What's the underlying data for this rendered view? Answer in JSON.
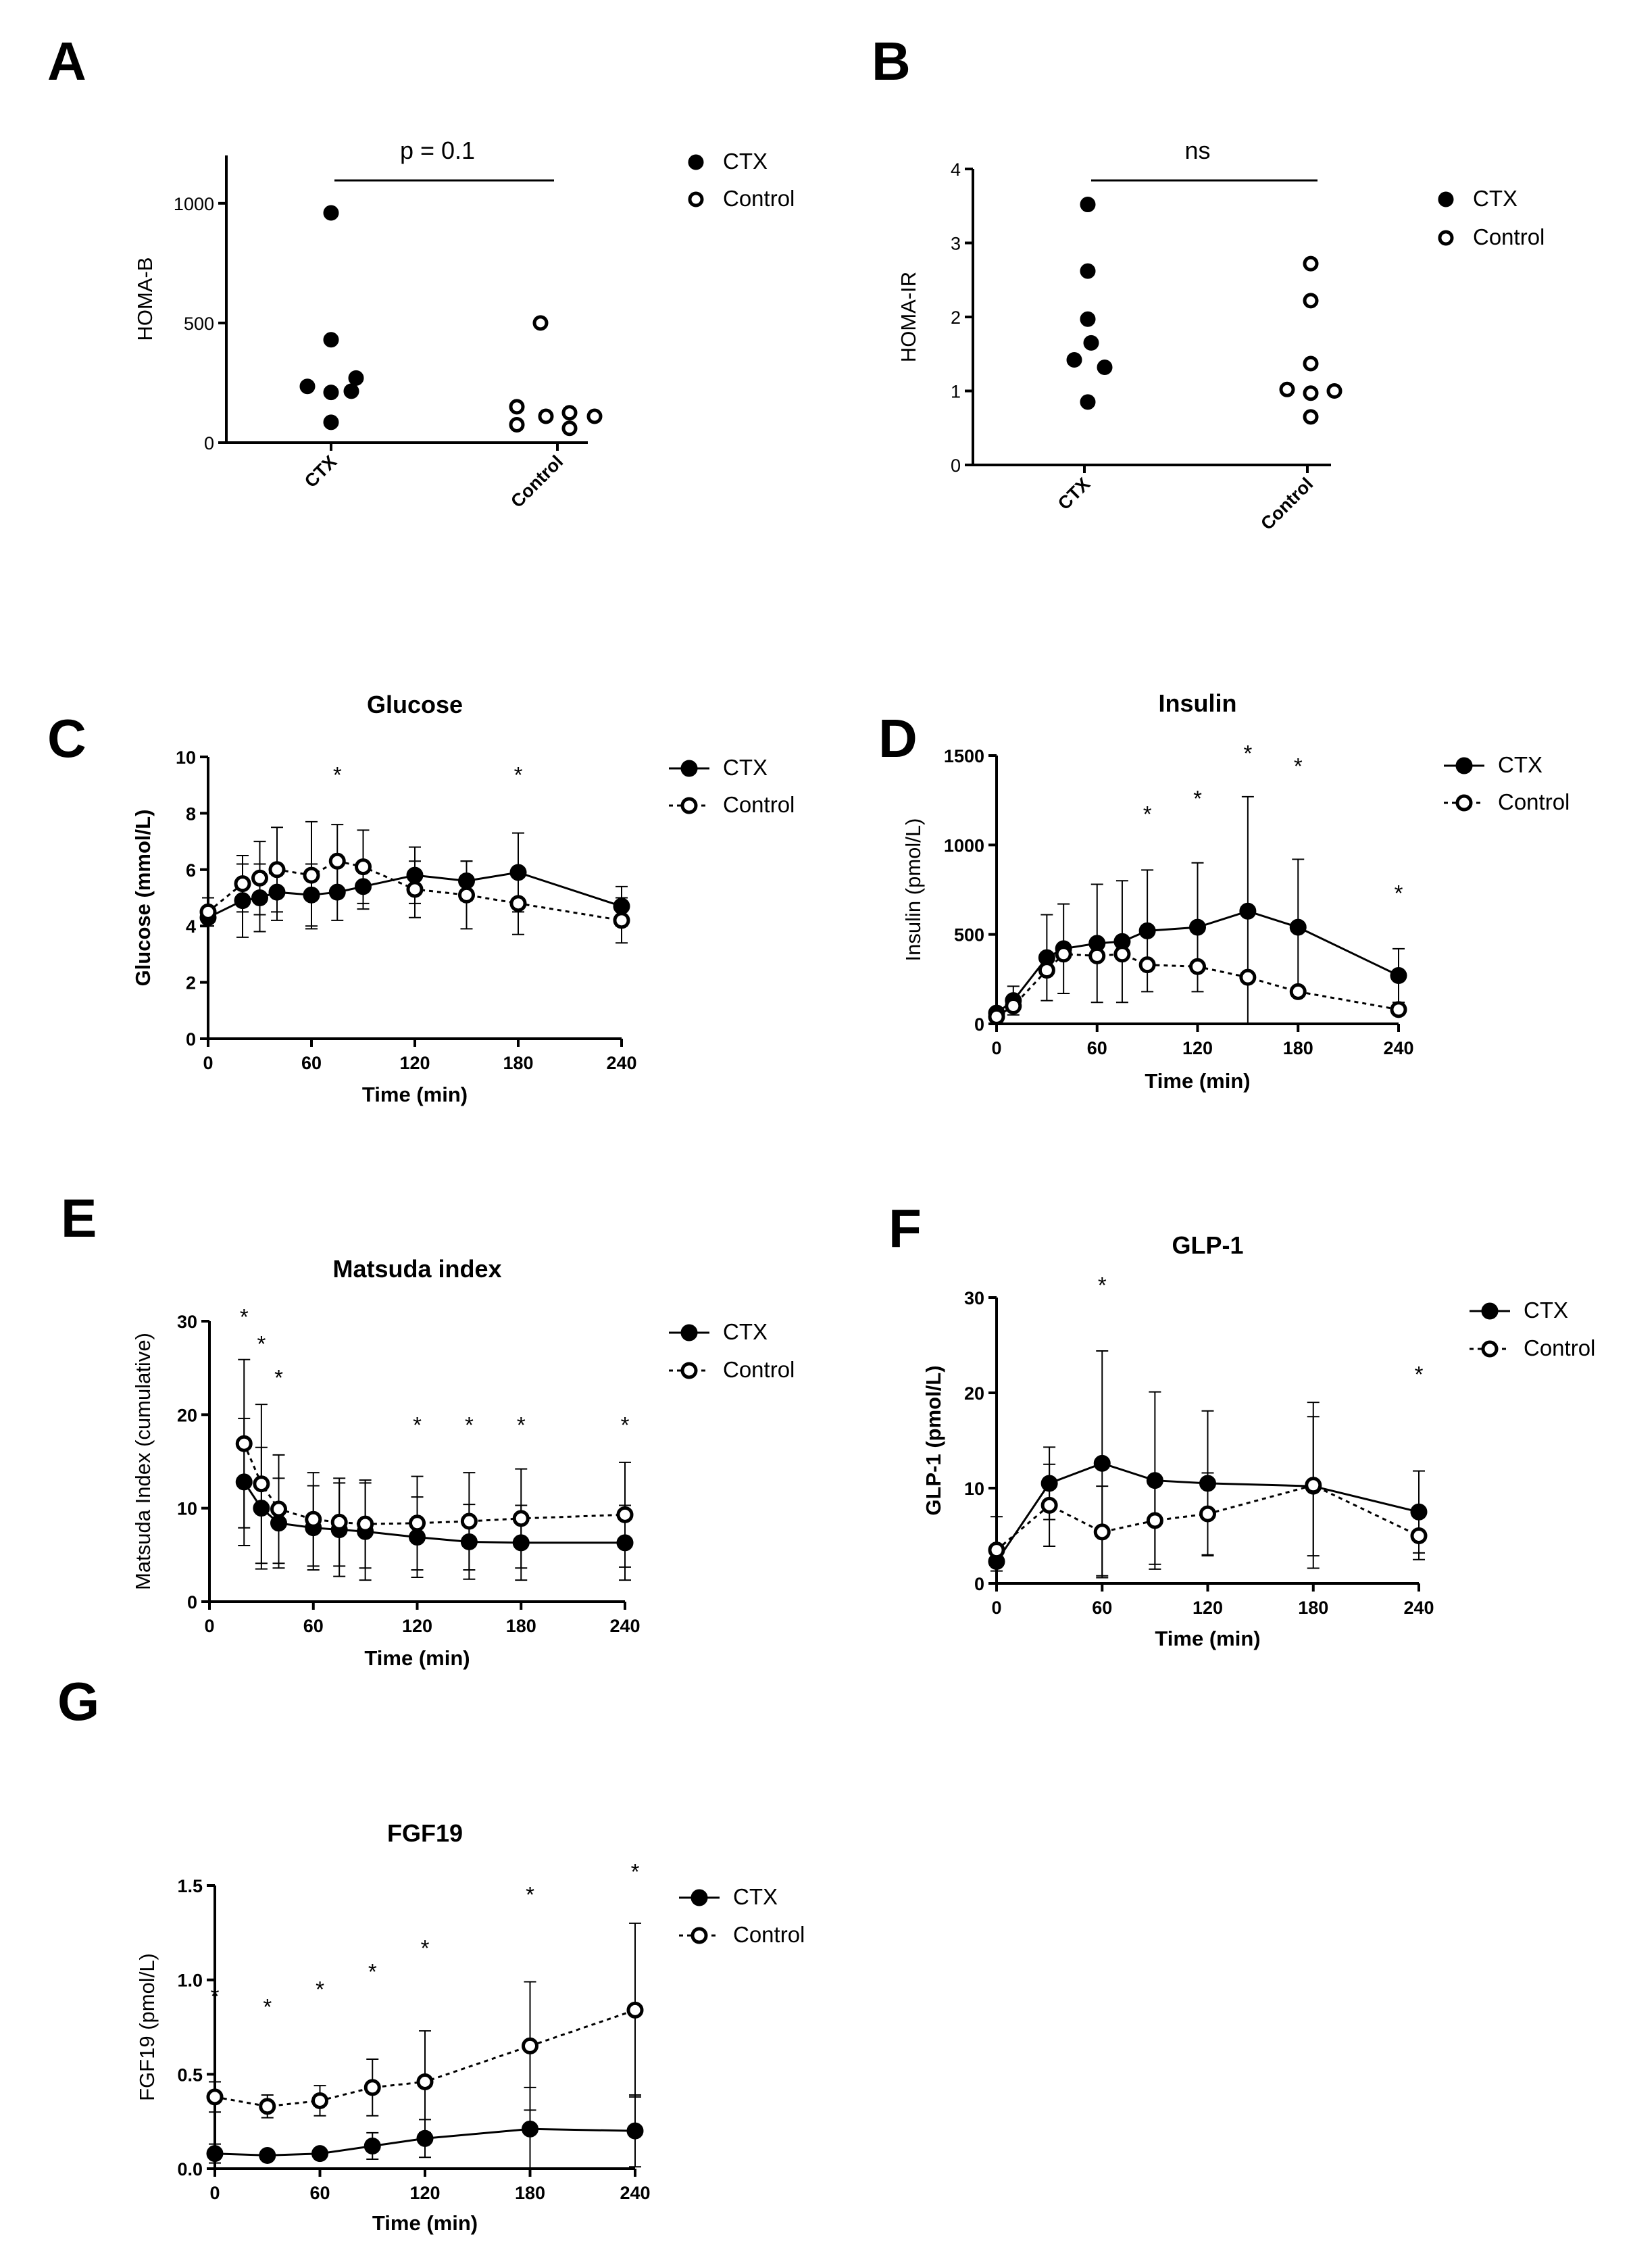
{
  "figure": {
    "panel_letters": [
      "A",
      "B",
      "C",
      "D",
      "E",
      "F",
      "G"
    ]
  },
  "chart_data": [
    {
      "id": "A",
      "type": "scatter",
      "title": "",
      "xlabel": "",
      "ylabel": "HOMA-B",
      "categories": [
        "CTX",
        "Control"
      ],
      "ylim": [
        0,
        1200
      ],
      "yticks": [
        0,
        500,
        1000
      ],
      "series": [
        {
          "name": "CTX",
          "style": "filled",
          "values": [
            960,
            430,
            270,
            235,
            210,
            215,
            85
          ]
        },
        {
          "name": "Control",
          "style": "open",
          "values": [
            500,
            150,
            125,
            110,
            110,
            75,
            60
          ]
        }
      ],
      "comparison": "p = 0.1"
    },
    {
      "id": "B",
      "type": "scatter",
      "title": "",
      "xlabel": "",
      "ylabel": "HOMA-IR",
      "categories": [
        "CTX",
        "Control"
      ],
      "ylim": [
        0,
        4
      ],
      "yticks": [
        0,
        1,
        2,
        3,
        4
      ],
      "series": [
        {
          "name": "CTX",
          "style": "filled",
          "values": [
            3.52,
            2.62,
            1.97,
            1.65,
            1.42,
            1.32,
            0.85
          ]
        },
        {
          "name": "Control",
          "style": "open",
          "values": [
            2.72,
            2.22,
            1.37,
            1.02,
            1.0,
            0.97,
            0.65
          ]
        }
      ],
      "comparison": "ns"
    },
    {
      "id": "C",
      "type": "line",
      "title": "Glucose",
      "xlabel": "Time (min)",
      "ylabel": "Glucose (mmol/L)",
      "xlim": [
        0,
        240
      ],
      "xticks": [
        0,
        60,
        120,
        180,
        240
      ],
      "ylim": [
        0,
        10
      ],
      "yticks": [
        0,
        2,
        4,
        6,
        8,
        10
      ],
      "series": [
        {
          "name": "CTX",
          "style": "solid",
          "x": [
            0,
            20,
            30,
            40,
            60,
            75,
            90,
            120,
            150,
            180,
            240
          ],
          "y": [
            4.3,
            4.9,
            5.0,
            5.2,
            5.1,
            5.2,
            5.4,
            5.8,
            5.6,
            5.9,
            4.7
          ],
          "err": [
            0.3,
            1.3,
            1.2,
            1.0,
            1.1,
            1.0,
            0.8,
            1.0,
            0.7,
            1.4,
            0.7
          ]
        },
        {
          "name": "Control",
          "style": "dashed",
          "x": [
            0,
            20,
            30,
            40,
            60,
            75,
            90,
            120,
            150,
            180,
            240
          ],
          "y": [
            4.5,
            5.5,
            5.7,
            6.0,
            5.8,
            6.3,
            6.1,
            5.3,
            5.1,
            4.8,
            4.2
          ],
          "err": [
            0.5,
            1.0,
            1.3,
            1.5,
            1.9,
            1.3,
            1.3,
            1.0,
            1.2,
            1.1,
            0.8
          ]
        }
      ],
      "significance": [
        {
          "x": 75,
          "label": "*"
        },
        {
          "x": 180,
          "label": "*"
        }
      ]
    },
    {
      "id": "D",
      "type": "line",
      "title": "Insulin",
      "xlabel": "Time (min)",
      "ylabel": "Insulin (pmol/L)",
      "xlim": [
        0,
        240
      ],
      "xticks": [
        0,
        60,
        120,
        180,
        240
      ],
      "ylim": [
        0,
        1500
      ],
      "yticks": [
        0,
        500,
        1000,
        1500
      ],
      "series": [
        {
          "name": "CTX",
          "style": "solid",
          "x": [
            0,
            10,
            30,
            40,
            60,
            75,
            90,
            120,
            150,
            180,
            240
          ],
          "y": [
            60,
            130,
            370,
            420,
            450,
            460,
            520,
            540,
            630,
            540,
            270
          ],
          "err": [
            30,
            80,
            240,
            250,
            330,
            340,
            340,
            360,
            640,
            380,
            150
          ]
        },
        {
          "name": "Control",
          "style": "dashed",
          "x": [
            0,
            10,
            30,
            40,
            60,
            75,
            90,
            120,
            150,
            180,
            240
          ],
          "y": [
            40,
            100,
            300,
            390,
            380,
            390,
            330,
            320,
            260,
            180,
            80
          ]
        }
      ],
      "significance": [
        {
          "x": 90,
          "label": "*"
        },
        {
          "x": 120,
          "label": "*"
        },
        {
          "x": 150,
          "label": "*"
        },
        {
          "x": 180,
          "label": "*"
        },
        {
          "x": 240,
          "label": "*"
        }
      ]
    },
    {
      "id": "E",
      "type": "line",
      "title": "Matsuda index",
      "xlabel": "Time (min)",
      "ylabel": "Matsuda Index (cumulative)",
      "xlim": [
        0,
        240
      ],
      "xticks": [
        0,
        60,
        120,
        180,
        240
      ],
      "ylim": [
        0,
        30
      ],
      "yticks": [
        0,
        10,
        20,
        30
      ],
      "series": [
        {
          "name": "CTX",
          "style": "solid",
          "x": [
            20,
            30,
            40,
            60,
            75,
            90,
            120,
            150,
            180,
            240
          ],
          "y": [
            12.8,
            10.0,
            8.4,
            7.9,
            7.7,
            7.5,
            6.9,
            6.4,
            6.3,
            6.3
          ],
          "err": [
            6.8,
            6.5,
            4.8,
            4.5,
            5.0,
            5.2,
            4.3,
            4.0,
            4.0,
            4.0
          ]
        },
        {
          "name": "Control",
          "style": "dashed",
          "x": [
            20,
            30,
            40,
            60,
            75,
            90,
            120,
            150,
            180,
            240
          ],
          "y": [
            16.9,
            12.6,
            9.9,
            8.8,
            8.5,
            8.3,
            8.4,
            8.6,
            8.9,
            9.3
          ],
          "err": [
            9.0,
            8.5,
            5.8,
            5.0,
            4.7,
            4.7,
            5.0,
            5.2,
            5.3,
            5.6
          ]
        }
      ],
      "significance": [
        {
          "x": 20,
          "label": "*"
        },
        {
          "x": 30,
          "label": "*"
        },
        {
          "x": 40,
          "label": "*"
        },
        {
          "x": 120,
          "label": "*"
        },
        {
          "x": 150,
          "label": "*"
        },
        {
          "x": 180,
          "label": "*"
        },
        {
          "x": 240,
          "label": "*"
        }
      ]
    },
    {
      "id": "F",
      "type": "line",
      "title": "GLP-1",
      "xlabel": "Time (min)",
      "ylabel": "GLP-1 (pmol/L)",
      "xlim": [
        0,
        240
      ],
      "xticks": [
        0,
        60,
        120,
        180,
        240
      ],
      "ylim": [
        0,
        30
      ],
      "yticks": [
        0,
        10,
        20,
        30
      ],
      "series": [
        {
          "name": "CTX",
          "style": "solid",
          "x": [
            0,
            30,
            60,
            90,
            120,
            180,
            240
          ],
          "y": [
            2.3,
            10.5,
            12.6,
            10.8,
            10.5,
            10.2,
            7.5
          ],
          "err": [
            1.0,
            3.8,
            11.8,
            9.3,
            7.6,
            7.3,
            4.3
          ]
        },
        {
          "name": "Control",
          "style": "dashed",
          "x": [
            0,
            30,
            60,
            90,
            120,
            180,
            240
          ],
          "y": [
            3.5,
            8.2,
            5.4,
            6.6,
            7.3,
            10.3,
            5.0
          ],
          "err": [
            3.5,
            4.3,
            4.8,
            4.6,
            4.3,
            8.7,
            2.5
          ]
        }
      ],
      "significance": [
        {
          "x": 60,
          "label": "*"
        },
        {
          "x": 240,
          "label": "*"
        }
      ]
    },
    {
      "id": "G",
      "type": "line",
      "title": "FGF19",
      "xlabel": "Time (min)",
      "ylabel": "FGF19 (pmol/L)",
      "xlim": [
        0,
        240
      ],
      "xticks": [
        0,
        60,
        120,
        180,
        240
      ],
      "ylim": [
        0,
        1.5
      ],
      "yticks": [
        "0.0",
        "0.5",
        "1.0",
        "1.5"
      ],
      "series": [
        {
          "name": "CTX",
          "style": "solid",
          "x": [
            0,
            30,
            60,
            90,
            120,
            180,
            240
          ],
          "y": [
            0.08,
            0.07,
            0.08,
            0.12,
            0.16,
            0.21,
            0.2
          ],
          "err": [
            0.05,
            0.02,
            0.02,
            0.07,
            0.1,
            0.22,
            0.19
          ]
        },
        {
          "name": "Control",
          "style": "dashed",
          "x": [
            0,
            30,
            60,
            90,
            120,
            180,
            240
          ],
          "y": [
            0.38,
            0.33,
            0.36,
            0.43,
            0.46,
            0.65,
            0.84
          ],
          "err": [
            0.08,
            0.06,
            0.08,
            0.15,
            0.27,
            0.34,
            0.46
          ]
        }
      ],
      "significance": [
        {
          "x": 0,
          "label": "*"
        },
        {
          "x": 30,
          "label": "*"
        },
        {
          "x": 60,
          "label": "*"
        },
        {
          "x": 90,
          "label": "*"
        },
        {
          "x": 120,
          "label": "*"
        },
        {
          "x": 180,
          "label": "*"
        },
        {
          "x": 240,
          "label": "*"
        }
      ]
    }
  ]
}
